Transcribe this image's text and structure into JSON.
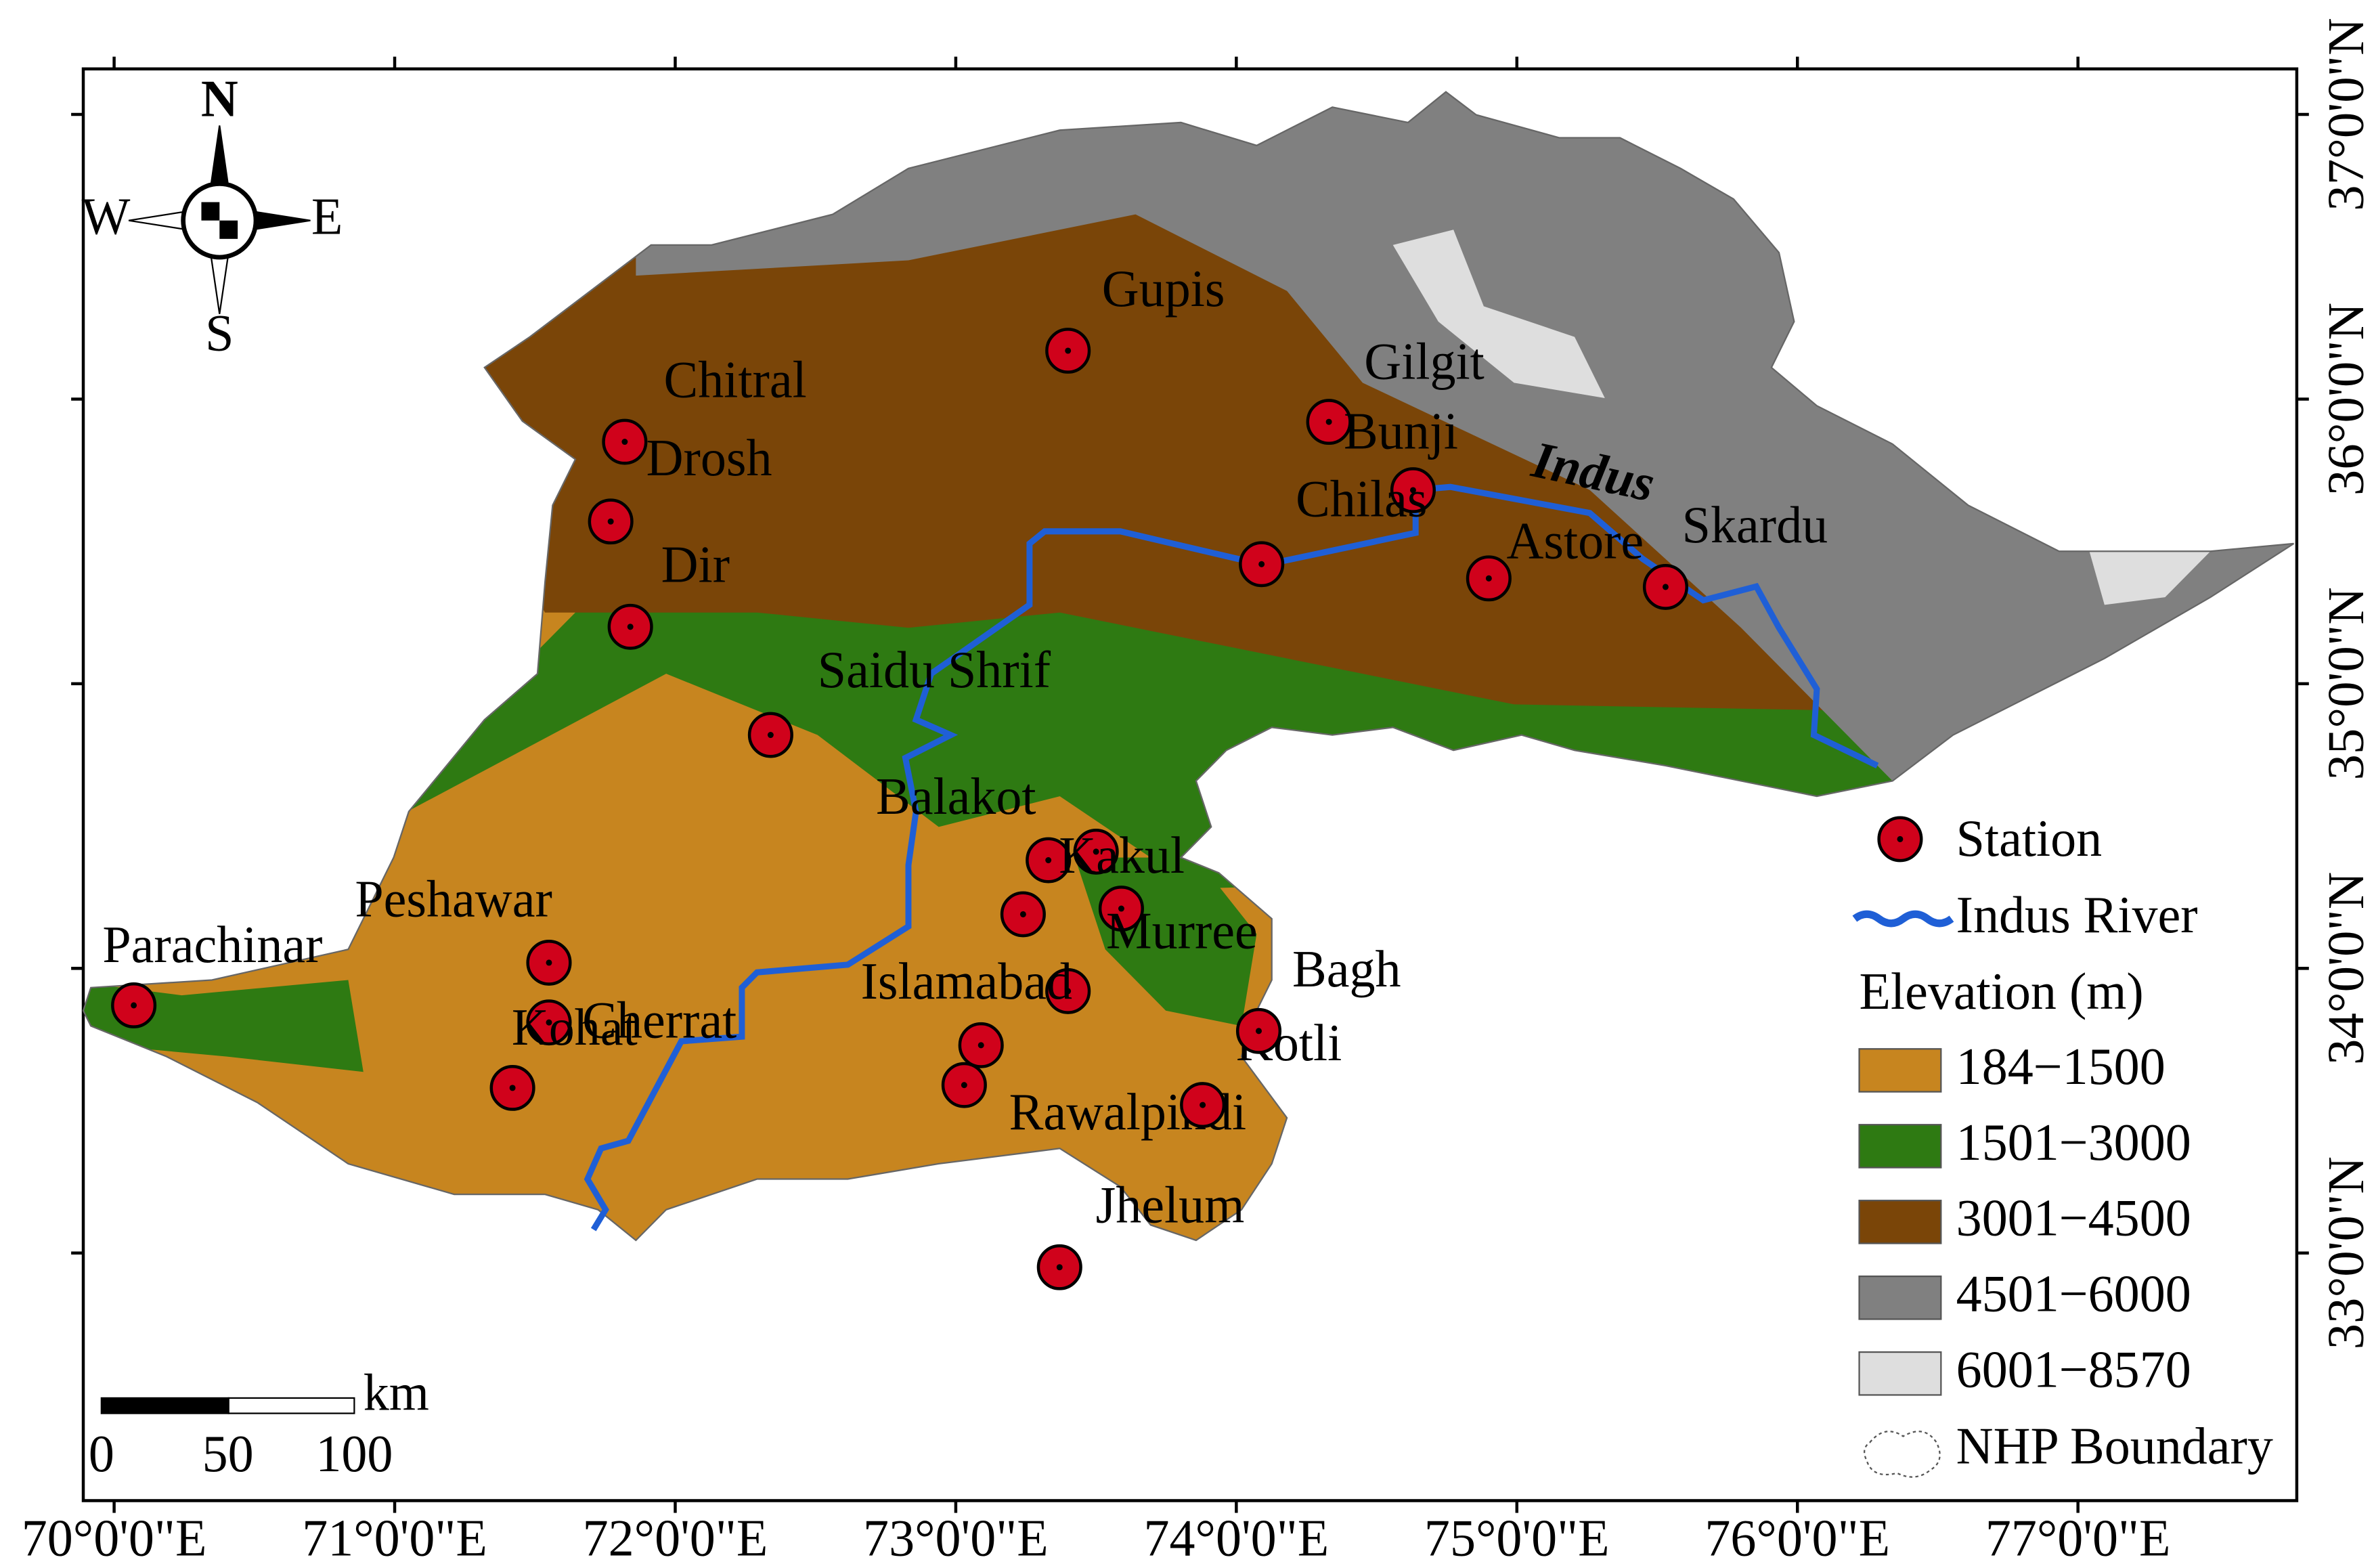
{
  "map": {
    "xlim": [
      69.89,
      77.78
    ],
    "ylim": [
      32.13,
      37.16
    ],
    "xticks": [
      {
        "value": 70,
        "label": "70°0'0\"E"
      },
      {
        "value": 71,
        "label": "71°0'0\"E"
      },
      {
        "value": 72,
        "label": "72°0'0\"E"
      },
      {
        "value": 73,
        "label": "73°0'0\"E"
      },
      {
        "value": 74,
        "label": "74°0'0\"E"
      },
      {
        "value": 75,
        "label": "75°0'0\"E"
      },
      {
        "value": 76,
        "label": "76°0'0\"E"
      },
      {
        "value": 77,
        "label": "77°0'0\"E"
      }
    ],
    "yticks": [
      {
        "value": 33,
        "label": "33°0'0\"N"
      },
      {
        "value": 34,
        "label": "34°0'0\"N"
      },
      {
        "value": 35,
        "label": "35°0'0\"N"
      },
      {
        "value": 36,
        "label": "36°0'0\"N"
      },
      {
        "value": 37,
        "label": "37°0'0\"N"
      }
    ],
    "compass": {
      "n": "N",
      "s": "S",
      "e": "E",
      "w": "W"
    },
    "scale_bar": {
      "unit": "km",
      "ticks": [
        0,
        50,
        100
      ]
    },
    "river_label": "Indus",
    "stations": [
      {
        "name": "Gupis",
        "lon": 73.4,
        "lat": 36.17
      },
      {
        "name": "Gilgit",
        "lon": 74.33,
        "lat": 35.92
      },
      {
        "name": "Bunji",
        "lon": 74.63,
        "lat": 35.68
      },
      {
        "name": "Chitral",
        "lon": 71.82,
        "lat": 35.85
      },
      {
        "name": "Drosh",
        "lon": 71.77,
        "lat": 35.57
      },
      {
        "name": "Dir",
        "lon": 71.84,
        "lat": 35.2
      },
      {
        "name": "Chilas",
        "lon": 74.09,
        "lat": 35.42
      },
      {
        "name": "Astore",
        "lon": 74.9,
        "lat": 35.37
      },
      {
        "name": "Skardu",
        "lon": 75.53,
        "lat": 35.34
      },
      {
        "name": "Saidu Shrif",
        "lon": 72.34,
        "lat": 34.82
      },
      {
        "name": "Balakot",
        "lon": 73.33,
        "lat": 34.38
      },
      {
        "name": "Kakul",
        "lon": 73.5,
        "lat": 34.41
      },
      {
        "name": "Murree",
        "lon": 73.59,
        "lat": 34.21
      },
      {
        "name": null,
        "lon": 73.24,
        "lat": 34.19
      },
      {
        "name": "Islamabad",
        "lon": 73.4,
        "lat": 33.92
      },
      {
        "name": null,
        "lon": 73.09,
        "lat": 33.73
      },
      {
        "name": "Rawalpindi",
        "lon": 73.03,
        "lat": 33.59
      },
      {
        "name": "Kotli",
        "lon": 73.88,
        "lat": 33.52
      },
      {
        "name": "Bagh",
        "lon": 74.08,
        "lat": 33.78
      },
      {
        "name": "Jhelum",
        "lon": 73.37,
        "lat": 32.95
      },
      {
        "name": "Peshawar",
        "lon": 71.55,
        "lat": 34.02
      },
      {
        "name": "Cherrat",
        "lon": 71.55,
        "lat": 33.81
      },
      {
        "name": "Kohat",
        "lon": 71.42,
        "lat": 33.58
      },
      {
        "name": "Parachinar",
        "lon": 70.07,
        "lat": 33.87
      }
    ],
    "legend": {
      "station": "Station",
      "river": "Indus River",
      "elevation_title": "Elevation (m)",
      "classes": [
        {
          "label": "184−1500",
          "color": "#c7851f"
        },
        {
          "label": "1501−3000",
          "color": "#2e7a12"
        },
        {
          "label": "3001−4500",
          "color": "#7a4508"
        },
        {
          "label": "4501−6000",
          "color": "#808080"
        },
        {
          "label": "6001−8570",
          "color": "#dedede"
        }
      ],
      "boundary": "NHP Boundary"
    }
  }
}
